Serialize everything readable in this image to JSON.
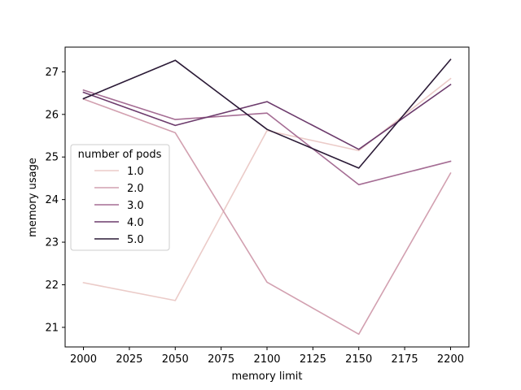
{
  "chart_data": {
    "type": "line",
    "xlabel": "memory limit",
    "ylabel": "memory usage",
    "x": [
      2000,
      2050,
      2100,
      2150,
      2200
    ],
    "x_ticks": [
      2000,
      2025,
      2050,
      2075,
      2100,
      2125,
      2150,
      2175,
      2200
    ],
    "y_ticks": [
      21,
      22,
      23,
      24,
      25,
      26,
      27
    ],
    "xlim": [
      1990,
      2210
    ],
    "ylim": [
      20.54,
      27.58
    ],
    "grid": false,
    "legend": {
      "title": "number of pods",
      "placement": "center-left"
    },
    "series": [
      {
        "name": "1.0",
        "color": "#ebcbc8",
        "values": [
          22.05,
          21.63,
          25.62,
          25.15,
          26.84
        ]
      },
      {
        "name": "2.0",
        "color": "#d2a0b0",
        "values": [
          26.36,
          25.57,
          22.06,
          20.84,
          24.62
        ]
      },
      {
        "name": "3.0",
        "color": "#a56d94",
        "values": [
          26.57,
          25.88,
          26.03,
          24.35,
          24.9
        ]
      },
      {
        "name": "4.0",
        "color": "#6c3b6c",
        "values": [
          26.52,
          25.74,
          26.3,
          25.18,
          26.7
        ]
      },
      {
        "name": "5.0",
        "color": "#2b1a36",
        "values": [
          26.37,
          27.27,
          25.65,
          24.74,
          27.29
        ]
      }
    ]
  }
}
